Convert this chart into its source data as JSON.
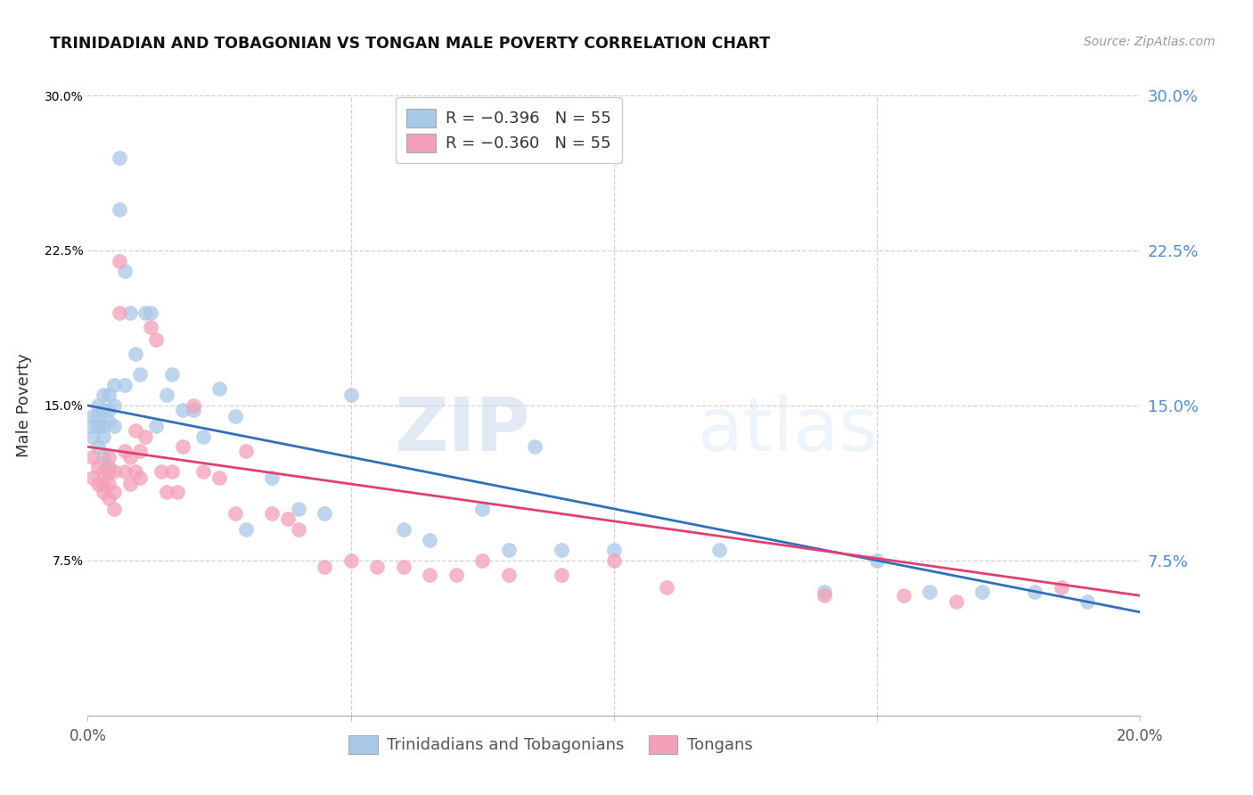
{
  "title": "TRINIDADIAN AND TOBAGONIAN VS TONGAN MALE POVERTY CORRELATION CHART",
  "source": "Source: ZipAtlas.com",
  "ylabel": "Male Poverty",
  "x_min": 0.0,
  "x_max": 0.2,
  "y_min": 0.0,
  "y_max": 0.3,
  "x_ticks": [
    0.0,
    0.05,
    0.1,
    0.15,
    0.2
  ],
  "y_ticks": [
    0.0,
    0.075,
    0.15,
    0.225,
    0.3
  ],
  "legend_blue_label": "R = −0.396   N = 55",
  "legend_pink_label": "R = −0.360   N = 55",
  "legend_bottom_blue": "Trinidadians and Tobagonians",
  "legend_bottom_pink": "Tongans",
  "blue_color": "#a8c8e8",
  "pink_color": "#f4a0b8",
  "blue_line_color": "#3070b8",
  "pink_line_color": "#e04070",
  "watermark_zip": "ZIP",
  "watermark_atlas": "atlas",
  "blue_x": [
    0.001,
    0.001,
    0.001,
    0.002,
    0.002,
    0.002,
    0.002,
    0.003,
    0.003,
    0.003,
    0.003,
    0.003,
    0.004,
    0.004,
    0.004,
    0.004,
    0.005,
    0.005,
    0.005,
    0.006,
    0.006,
    0.007,
    0.007,
    0.008,
    0.009,
    0.01,
    0.011,
    0.012,
    0.013,
    0.015,
    0.016,
    0.018,
    0.02,
    0.022,
    0.025,
    0.028,
    0.03,
    0.035,
    0.04,
    0.045,
    0.05,
    0.06,
    0.065,
    0.075,
    0.08,
    0.085,
    0.09,
    0.1,
    0.12,
    0.14,
    0.15,
    0.16,
    0.17,
    0.18,
    0.19
  ],
  "blue_y": [
    0.145,
    0.14,
    0.135,
    0.15,
    0.145,
    0.14,
    0.13,
    0.155,
    0.148,
    0.14,
    0.135,
    0.125,
    0.155,
    0.148,
    0.142,
    0.12,
    0.16,
    0.15,
    0.14,
    0.27,
    0.245,
    0.16,
    0.215,
    0.195,
    0.175,
    0.165,
    0.195,
    0.195,
    0.14,
    0.155,
    0.165,
    0.148,
    0.148,
    0.135,
    0.158,
    0.145,
    0.09,
    0.115,
    0.1,
    0.098,
    0.155,
    0.09,
    0.085,
    0.1,
    0.08,
    0.13,
    0.08,
    0.08,
    0.08,
    0.06,
    0.075,
    0.06,
    0.06,
    0.06,
    0.055
  ],
  "pink_x": [
    0.001,
    0.001,
    0.002,
    0.002,
    0.003,
    0.003,
    0.003,
    0.004,
    0.004,
    0.004,
    0.004,
    0.005,
    0.005,
    0.005,
    0.006,
    0.006,
    0.007,
    0.007,
    0.008,
    0.008,
    0.009,
    0.009,
    0.01,
    0.01,
    0.011,
    0.012,
    0.013,
    0.014,
    0.015,
    0.016,
    0.017,
    0.018,
    0.02,
    0.022,
    0.025,
    0.028,
    0.03,
    0.035,
    0.038,
    0.04,
    0.045,
    0.05,
    0.055,
    0.06,
    0.065,
    0.07,
    0.075,
    0.08,
    0.09,
    0.1,
    0.11,
    0.14,
    0.155,
    0.165,
    0.185
  ],
  "pink_y": [
    0.125,
    0.115,
    0.12,
    0.112,
    0.118,
    0.112,
    0.108,
    0.125,
    0.118,
    0.112,
    0.105,
    0.118,
    0.108,
    0.1,
    0.22,
    0.195,
    0.128,
    0.118,
    0.125,
    0.112,
    0.138,
    0.118,
    0.128,
    0.115,
    0.135,
    0.188,
    0.182,
    0.118,
    0.108,
    0.118,
    0.108,
    0.13,
    0.15,
    0.118,
    0.115,
    0.098,
    0.128,
    0.098,
    0.095,
    0.09,
    0.072,
    0.075,
    0.072,
    0.072,
    0.068,
    0.068,
    0.075,
    0.068,
    0.068,
    0.075,
    0.062,
    0.058,
    0.058,
    0.055,
    0.062
  ],
  "blue_trend_x": [
    0.0,
    0.2
  ],
  "blue_trend_y": [
    0.15,
    0.05
  ],
  "pink_trend_x": [
    0.0,
    0.2
  ],
  "pink_trend_y": [
    0.13,
    0.058
  ]
}
